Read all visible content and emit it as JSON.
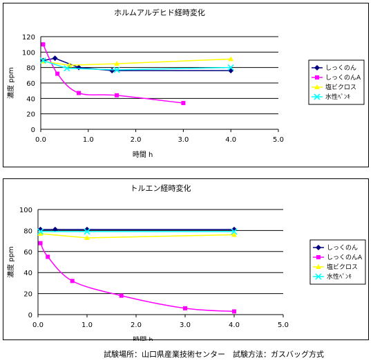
{
  "chart_data": [
    {
      "type": "line",
      "title": "ホルムアルデヒド経時変化",
      "xlabel": "時間 h",
      "ylabel": "濃度 ppm",
      "xlim": [
        0,
        5
      ],
      "ylim": [
        0,
        120
      ],
      "xticks": [
        "0.0",
        "1.0",
        "2.0",
        "3.0",
        "4.0",
        "5.0"
      ],
      "yticks": [
        "0",
        "20",
        "40",
        "60",
        "80",
        "100",
        "120"
      ],
      "grid": "horizontal",
      "legend": "right",
      "series": [
        {
          "name": "しっくのん",
          "color": "#000080",
          "marker": "diamond",
          "x": [
            0.05,
            0.3,
            0.8,
            1.5,
            4.0
          ],
          "y": [
            89,
            92,
            80,
            76,
            76
          ]
        },
        {
          "name": "しっくのんA",
          "color": "#ff00ff",
          "marker": "square",
          "x": [
            0.05,
            0.35,
            0.8,
            1.6,
            3.0
          ],
          "y": [
            110,
            72,
            47,
            44,
            34
          ]
        },
        {
          "name": "塩ビクロス",
          "color": "#ffff00",
          "marker": "triangle",
          "x": [
            0.05,
            0.6,
            1.6,
            4.0
          ],
          "y": [
            88,
            83,
            85,
            91
          ]
        },
        {
          "name": "水性ﾍﾟﾝｷ",
          "color": "#00ffff",
          "marker": "x",
          "x": [
            0.05,
            0.55,
            1.6,
            4.0
          ],
          "y": [
            89,
            79,
            77,
            80
          ]
        }
      ]
    },
    {
      "type": "line",
      "title": "トルエン経時変化",
      "xlabel": "時間 h",
      "ylabel": "濃度 ppm",
      "xlim": [
        0,
        5
      ],
      "ylim": [
        0,
        100
      ],
      "xticks": [
        "0.0",
        "1.0",
        "2.0",
        "3.0",
        "4.0",
        "5.0"
      ],
      "yticks": [
        "0",
        "20",
        "40",
        "60",
        "80",
        "100"
      ],
      "grid": "horizontal",
      "legend": "right",
      "series": [
        {
          "name": "しっくのん",
          "color": "#000080",
          "marker": "diamond",
          "x": [
            0.05,
            0.35,
            1.0,
            4.0
          ],
          "y": [
            81,
            81,
            81,
            81
          ]
        },
        {
          "name": "しっくのんA",
          "color": "#ff00ff",
          "marker": "square",
          "x": [
            0.05,
            0.2,
            0.7,
            1.7,
            3.0,
            4.0
          ],
          "y": [
            68,
            55,
            32,
            18,
            6,
            3
          ]
        },
        {
          "name": "塩ビクロス",
          "color": "#ffff00",
          "marker": "triangle",
          "x": [
            0.05,
            1.0,
            4.0
          ],
          "y": [
            77,
            73,
            76
          ]
        },
        {
          "name": "水性ﾍﾟﾝｷ",
          "color": "#00ffff",
          "marker": "x",
          "x": [
            0.05,
            1.0,
            4.0
          ],
          "y": [
            79,
            79,
            79
          ]
        }
      ]
    }
  ],
  "footer": "試験場所：山口県産業技術センター　試験方法：ガスバッグ方式"
}
